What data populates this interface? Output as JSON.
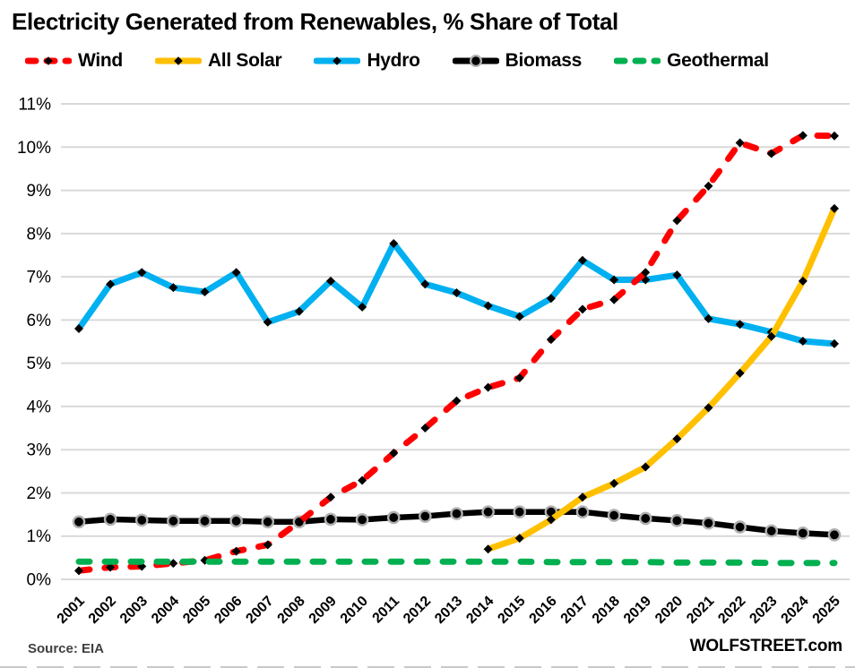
{
  "chart_data": {
    "type": "line",
    "title": "Electricity Generated from Renewables, % Share of Total",
    "x": [
      2001,
      2002,
      2003,
      2004,
      2005,
      2006,
      2007,
      2008,
      2009,
      2010,
      2011,
      2012,
      2013,
      2014,
      2015,
      2016,
      2017,
      2018,
      2019,
      2020,
      2021,
      2022,
      2023,
      2024,
      2025
    ],
    "ylim": [
      0,
      11
    ],
    "ytick_labels": [
      "0%",
      "1%",
      "2%",
      "3%",
      "4%",
      "5%",
      "6%",
      "7%",
      "8%",
      "9%",
      "10%",
      "11%"
    ],
    "grid": true,
    "legend_position": "top",
    "series": [
      {
        "name": "Wind",
        "color": "#FF0000",
        "style": "dashed",
        "marker": "diamond",
        "values": [
          0.2,
          0.28,
          0.3,
          0.37,
          0.44,
          0.65,
          0.8,
          1.33,
          1.9,
          2.29,
          2.92,
          3.5,
          4.13,
          4.44,
          4.66,
          5.55,
          6.25,
          6.47,
          7.1,
          8.3,
          9.1,
          10.1,
          9.85,
          10.27,
          10.26
        ]
      },
      {
        "name": "All Solar",
        "color": "#FFC000",
        "style": "solid",
        "marker": "diamond",
        "values": [
          null,
          null,
          null,
          null,
          null,
          null,
          null,
          null,
          null,
          null,
          null,
          null,
          null,
          0.7,
          0.95,
          1.38,
          1.9,
          2.22,
          2.6,
          3.25,
          3.97,
          4.77,
          5.62,
          6.9,
          8.58
        ]
      },
      {
        "name": "Hydro",
        "color": "#00B0F0",
        "style": "solid",
        "marker": "diamond",
        "values": [
          5.8,
          6.83,
          7.1,
          6.75,
          6.65,
          7.1,
          5.95,
          6.2,
          6.9,
          6.3,
          7.77,
          6.83,
          6.63,
          6.33,
          6.08,
          6.5,
          7.38,
          6.93,
          6.93,
          7.04,
          6.03,
          5.9,
          5.72,
          5.51,
          5.45
        ]
      },
      {
        "name": "Biomass",
        "color": "#000000",
        "style": "solid",
        "marker": "circle",
        "values": [
          1.33,
          1.39,
          1.37,
          1.35,
          1.35,
          1.35,
          1.33,
          1.33,
          1.39,
          1.38,
          1.43,
          1.46,
          1.52,
          1.56,
          1.56,
          1.56,
          1.56,
          1.48,
          1.41,
          1.36,
          1.3,
          1.21,
          1.12,
          1.07,
          1.03
        ]
      },
      {
        "name": "Geothermal",
        "color": "#00B050",
        "style": "dashed",
        "marker": "none",
        "values": [
          0.41,
          0.41,
          0.41,
          0.41,
          0.41,
          0.41,
          0.41,
          0.41,
          0.41,
          0.41,
          0.41,
          0.41,
          0.41,
          0.41,
          0.41,
          0.4,
          0.4,
          0.4,
          0.4,
          0.39,
          0.39,
          0.39,
          0.38,
          0.38,
          0.38
        ]
      }
    ]
  },
  "footer": {
    "source": "Source: EIA",
    "brand": "WOLFSTREET.com"
  },
  "colors": {
    "gridline": "#D9D9D9",
    "marker": "#000000",
    "biomass_ring": "#B0B0B0",
    "background": "#FFFFFF"
  }
}
